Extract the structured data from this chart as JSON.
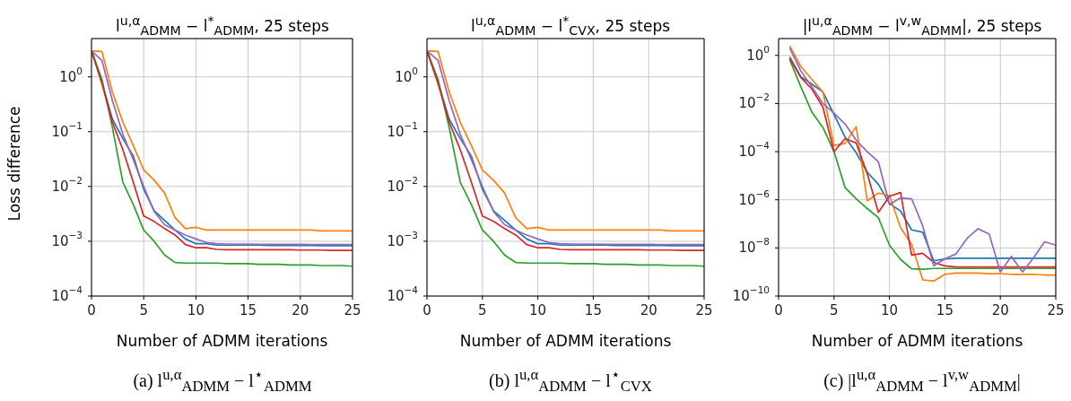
{
  "chart_data": [
    {
      "type": "line",
      "title": "l$^{u,α}$$_{ADMM}$ − l$^{*}$$_{ADMM}$, 25 steps",
      "xlabel": "Number of ADMM iterations",
      "ylabel": "Loss difference",
      "annotations": [
        "(a) l$^{u,α}$$_{ADMM}$ − l$^{⋆}$$_{ADMM}$"
      ],
      "x": [
        0,
        1,
        2,
        3,
        4,
        5,
        6,
        7,
        8,
        9,
        10,
        11,
        12,
        13,
        14,
        15,
        16,
        17,
        18,
        19,
        20,
        21,
        22,
        23,
        24,
        25
      ],
      "series": [
        {
          "color": "#1f77b4",
          "values": [
            3.0,
            0.8,
            0.17,
            0.075,
            0.036,
            0.0089,
            0.0036,
            0.0024,
            0.0016,
            0.0011,
            0.0009,
            0.0009,
            0.00085,
            0.00085,
            0.00085,
            0.00085,
            0.00085,
            0.00084,
            0.00084,
            0.00084,
            0.00084,
            0.00084,
            0.00083,
            0.00083,
            0.00083,
            0.00083
          ]
        },
        {
          "color": "#ff7f0e",
          "values": [
            3.0,
            2.9,
            0.53,
            0.15,
            0.056,
            0.02,
            0.013,
            0.0076,
            0.0027,
            0.0017,
            0.0018,
            0.0016,
            0.0016,
            0.0016,
            0.0016,
            0.0016,
            0.0016,
            0.0016,
            0.0016,
            0.0016,
            0.0016,
            0.0016,
            0.00155,
            0.00155,
            0.00155,
            0.00155
          ]
        },
        {
          "color": "#2ca02c",
          "values": [
            3.0,
            0.9,
            0.12,
            0.012,
            0.0047,
            0.0016,
            0.001,
            0.00056,
            0.00041,
            0.0004,
            0.0004,
            0.0004,
            0.0004,
            0.00039,
            0.00039,
            0.00039,
            0.00038,
            0.00038,
            0.00038,
            0.00037,
            0.00037,
            0.00037,
            0.00036,
            0.00036,
            0.00036,
            0.00035
          ]
        },
        {
          "color": "#d62728",
          "values": [
            3.0,
            0.75,
            0.15,
            0.047,
            0.012,
            0.0029,
            0.0023,
            0.0017,
            0.0013,
            0.00087,
            0.00076,
            0.00076,
            0.00071,
            0.0007,
            0.0007,
            0.0007,
            0.0007,
            0.0007,
            0.0007,
            0.0007,
            0.00069,
            0.00069,
            0.00069,
            0.00068,
            0.00068,
            0.00068
          ]
        },
        {
          "color": "#9467bd",
          "values": [
            3.0,
            2.0,
            0.37,
            0.09,
            0.031,
            0.01,
            0.0035,
            0.002,
            0.0016,
            0.0013,
            0.0011,
            0.00095,
            0.0009,
            0.00089,
            0.00089,
            0.00089,
            0.00088,
            0.00088,
            0.00088,
            0.00088,
            0.00088,
            0.00087,
            0.00087,
            0.00087,
            0.00087,
            0.00087
          ]
        }
      ],
      "xlim": [
        0,
        25
      ],
      "xticks": [
        0,
        5,
        10,
        15,
        20,
        25
      ],
      "ylim": [
        0.0001,
        5
      ],
      "yticks": [
        {
          "value": 0.0001,
          "label": "10$^{−4}$"
        },
        {
          "value": 0.001,
          "label": "10$^{−3}$"
        },
        {
          "value": 0.01,
          "label": "10$^{−2}$"
        },
        {
          "value": 0.1,
          "label": "10$^{−1}$"
        },
        {
          "value": 1,
          "label": "10$^{0}$"
        }
      ],
      "log": "y",
      "grid": true
    },
    {
      "type": "line",
      "title": "l$^{u,α}$$_{ADMM}$ − l$^{*}$$_{CVX}$, 25 steps",
      "xlabel": "Number of ADMM iterations",
      "annotations": [
        "(b) l$^{u,α}$$_{ADMM}$ − l$^{⋆}$$_{CVX}$"
      ],
      "x": [
        0,
        1,
        2,
        3,
        4,
        5,
        6,
        7,
        8,
        9,
        10,
        11,
        12,
        13,
        14,
        15,
        16,
        17,
        18,
        19,
        20,
        21,
        22,
        23,
        24,
        25
      ],
      "series": [
        {
          "color": "#1f77b4",
          "values": [
            3.0,
            0.8,
            0.17,
            0.075,
            0.036,
            0.0089,
            0.0036,
            0.0024,
            0.0016,
            0.0011,
            0.0009,
            0.0009,
            0.00085,
            0.00085,
            0.00085,
            0.00085,
            0.00085,
            0.00084,
            0.00084,
            0.00084,
            0.00084,
            0.00084,
            0.00083,
            0.00083,
            0.00083,
            0.00083
          ]
        },
        {
          "color": "#ff7f0e",
          "values": [
            3.0,
            2.9,
            0.53,
            0.15,
            0.056,
            0.02,
            0.013,
            0.0076,
            0.0027,
            0.0017,
            0.0018,
            0.0016,
            0.0016,
            0.0016,
            0.0016,
            0.0016,
            0.0016,
            0.0016,
            0.0016,
            0.0016,
            0.0016,
            0.0016,
            0.00155,
            0.00155,
            0.00155,
            0.00155
          ]
        },
        {
          "color": "#2ca02c",
          "values": [
            3.0,
            0.9,
            0.12,
            0.012,
            0.0047,
            0.0016,
            0.001,
            0.00056,
            0.00041,
            0.0004,
            0.0004,
            0.0004,
            0.0004,
            0.00039,
            0.00039,
            0.00039,
            0.00038,
            0.00038,
            0.00038,
            0.00037,
            0.00037,
            0.00037,
            0.00036,
            0.00036,
            0.00036,
            0.00035
          ]
        },
        {
          "color": "#d62728",
          "values": [
            3.0,
            0.75,
            0.15,
            0.047,
            0.012,
            0.0029,
            0.0023,
            0.0017,
            0.0013,
            0.00087,
            0.00076,
            0.00076,
            0.00071,
            0.0007,
            0.0007,
            0.0007,
            0.0007,
            0.0007,
            0.0007,
            0.0007,
            0.00069,
            0.00069,
            0.00069,
            0.00068,
            0.00068,
            0.00068
          ]
        },
        {
          "color": "#9467bd",
          "values": [
            3.0,
            2.0,
            0.37,
            0.09,
            0.031,
            0.01,
            0.0035,
            0.002,
            0.0016,
            0.0013,
            0.0011,
            0.00095,
            0.0009,
            0.00089,
            0.00089,
            0.00089,
            0.00088,
            0.00088,
            0.00088,
            0.00088,
            0.00088,
            0.00087,
            0.00087,
            0.00087,
            0.00087,
            0.00087
          ]
        }
      ],
      "xlim": [
        0,
        25
      ],
      "xticks": [
        0,
        5,
        10,
        15,
        20,
        25
      ],
      "ylim": [
        0.0001,
        5
      ],
      "yticks": [
        {
          "value": 0.0001,
          "label": "10$^{−4}$"
        },
        {
          "value": 0.001,
          "label": "10$^{−3}$"
        },
        {
          "value": 0.01,
          "label": "10$^{−2}$"
        },
        {
          "value": 0.1,
          "label": "10$^{−1}$"
        },
        {
          "value": 1,
          "label": "10$^{0}$"
        }
      ],
      "log": "y",
      "grid": true
    },
    {
      "type": "line",
      "title": "|l$^{u,α}$$_{ADMM}$ − l$^{v,w}$$_{ADMM}$|, 25 steps",
      "xlabel": "Number of ADMM iterations",
      "annotations": [
        "(c) |l$^{u,α}$$_{ADMM}$ − l$^{v,w}$$_{ADMM}$|"
      ],
      "x": [
        1,
        2,
        3,
        4,
        5,
        6,
        7,
        8,
        9,
        10,
        11,
        12,
        13,
        14,
        15,
        16,
        17,
        18,
        19,
        20,
        21,
        22,
        23,
        24,
        25
      ],
      "series": [
        {
          "color": "#1f77b4",
          "values": [
            0.87,
            0.13,
            0.064,
            0.03,
            0.0035,
            0.0004,
            9e-05,
            1.4e-05,
            4.4e-06,
            7e-07,
            3.4e-07,
            5.6e-08,
            4.5e-08,
            2.9e-09,
            3.5e-09,
            3.7e-09,
            3.7e-09,
            3.7e-09,
            3.7e-09,
            3.7e-09,
            3.7e-09,
            3.7e-09,
            3.7e-09,
            3.7e-09,
            3.7e-09
          ]
        },
        {
          "color": "#ff7f0e",
          "values": [
            2.5,
            0.35,
            0.1,
            0.03,
            0.00018,
            0.00022,
            0.0011,
            9e-07,
            1.9e-06,
            1.5e-06,
            7e-08,
            1.4e-08,
            4.7e-10,
            4.2e-10,
            8e-10,
            9e-10,
            9e-10,
            9e-10,
            8.5e-10,
            8.5e-10,
            8e-10,
            8e-10,
            8e-10,
            7.5e-10,
            7.5e-10
          ]
        },
        {
          "color": "#2ca02c",
          "values": [
            0.67,
            0.05,
            0.0044,
            0.001,
            0.0001,
            3.2e-06,
            1.1e-06,
            4.3e-07,
            1.8e-07,
            1.3e-08,
            3.3e-09,
            1.35e-09,
            1.3e-09,
            1.4e-09,
            1.4e-09,
            1.4e-09,
            1.4e-09,
            1.4e-09,
            1.4e-09,
            1.4e-09,
            1.4e-09,
            1.4e-09,
            1.4e-09,
            1.4e-09,
            1.4e-09
          ]
        },
        {
          "color": "#d62728",
          "values": [
            0.76,
            0.12,
            0.04,
            0.007,
            0.0001,
            0.00035,
            0.00023,
            1.2e-05,
            3e-07,
            1.4e-06,
            2e-06,
            5e-09,
            6e-09,
            2.5e-09,
            1.8e-09,
            1.6e-09,
            1.6e-09,
            1.6e-09,
            1.6e-09,
            1.6e-09,
            1.6e-09,
            1.6e-09,
            1.6e-09,
            1.6e-09,
            1.6e-09
          ]
        },
        {
          "color": "#9467bd",
          "values": [
            2.0,
            0.23,
            0.05,
            0.01,
            0.004,
            0.0014,
            0.0003,
            0.0001,
            3.8e-05,
            6.3e-07,
            1.2e-06,
            1.1e-06,
            8.3e-08,
            1.8e-09,
            3.5e-09,
            5.6e-09,
            2.5e-08,
            6.3e-08,
            3.7e-08,
            1e-09,
            4.5e-09,
            1e-09,
            3.9e-09,
            1.8e-08,
            1.3e-08
          ]
        }
      ],
      "xlim": [
        0,
        25
      ],
      "xticks": [
        0,
        5,
        10,
        15,
        20,
        25
      ],
      "ylim": [
        1e-10,
        5
      ],
      "yticks": [
        {
          "value": 1e-10,
          "label": "10$^{−10}$"
        },
        {
          "value": 1e-08,
          "label": "10$^{−8}$"
        },
        {
          "value": 1e-06,
          "label": "10$^{−6}$"
        },
        {
          "value": 0.0001,
          "label": "10$^{−4}$"
        },
        {
          "value": 0.01,
          "label": "10$^{−2}$"
        },
        {
          "value": 1,
          "label": "10$^{0}$"
        }
      ],
      "log": "y",
      "grid": true
    }
  ]
}
